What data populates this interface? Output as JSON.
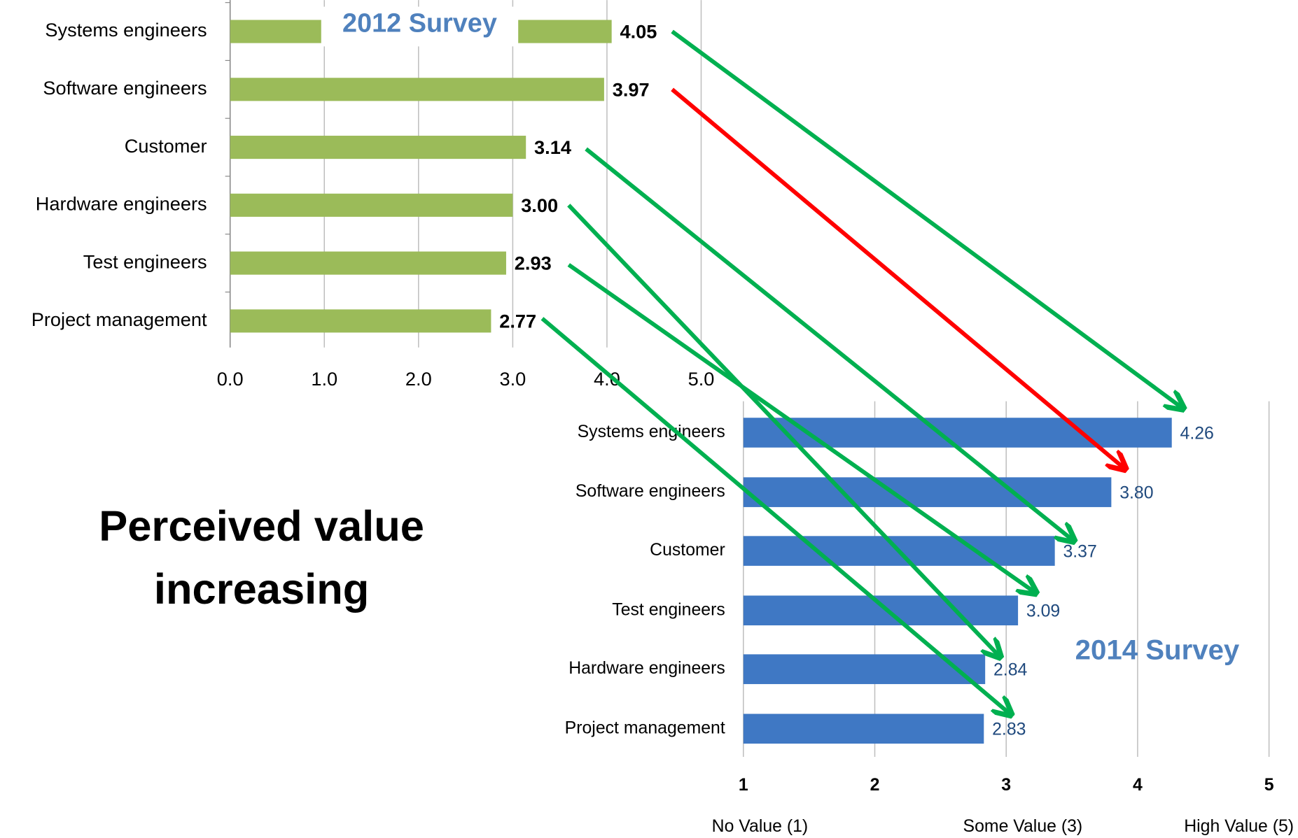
{
  "annotation": [
    "Perceived value",
    "increasing"
  ],
  "chart_data": [
    {
      "type": "hbar",
      "title": "2012 Survey",
      "categories": [
        "Systems engineers",
        "Software engineers",
        "Customer",
        "Hardware engineers",
        "Test engineers",
        "Project management"
      ],
      "values": [
        4.05,
        3.97,
        3.14,
        3.0,
        2.93,
        2.77
      ],
      "value_labels": [
        "4.05",
        "3.97",
        "3.14",
        "3.00",
        "2.93",
        "2.77"
      ],
      "color": "#9bbb59",
      "xlim": [
        0,
        5
      ],
      "xticks": [
        {
          "value": 0,
          "label": "0.0"
        },
        {
          "value": 1,
          "label": "1.0"
        },
        {
          "value": 2,
          "label": "2.0"
        },
        {
          "value": 3,
          "label": "3.0"
        },
        {
          "value": 4,
          "label": "4.0"
        },
        {
          "value": 5,
          "label": "5.0"
        }
      ],
      "grid": true
    },
    {
      "type": "hbar",
      "title": "2014 Survey",
      "categories": [
        "Systems engineers",
        "Software engineers",
        "Customer",
        "Test engineers",
        "Hardware engineers",
        "Project management"
      ],
      "values": [
        4.26,
        3.8,
        3.37,
        3.09,
        2.84,
        2.83
      ],
      "value_labels": [
        "4.26",
        "3.80",
        "3.37",
        "3.09",
        "2.84",
        "2.83"
      ],
      "color": "#3f78c4",
      "xlim": [
        1,
        5
      ],
      "xticks": [
        1,
        2,
        3,
        4,
        5
      ],
      "x_axis_labels": [
        {
          "value": 1,
          "label": "No Value (1)"
        },
        {
          "value": 3,
          "label": "Some Value (3)"
        },
        {
          "value": 5,
          "label": "High Value (5)"
        }
      ],
      "grid": true
    }
  ]
}
